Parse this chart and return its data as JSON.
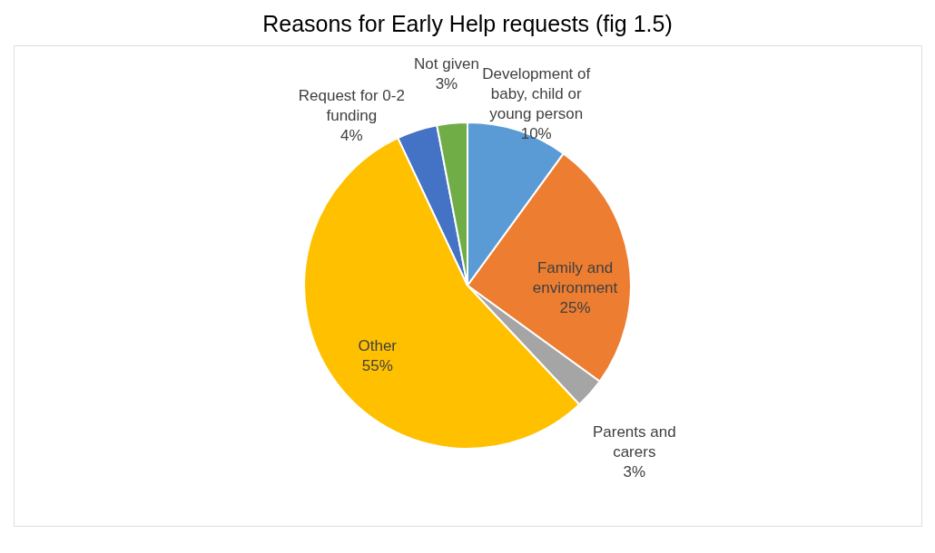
{
  "chart_data": {
    "type": "pie",
    "title": "Reasons for Early Help requests (fig 1.5)",
    "categories": [
      "Development of baby, child or young person",
      "Family and environment",
      "Parents and carers",
      "Other",
      "Request for 0-2 funding",
      "Not given"
    ],
    "values": [
      10,
      25,
      3,
      55,
      4,
      3
    ],
    "colors": [
      "#5b9bd5",
      "#ed7d31",
      "#a5a5a5",
      "#ffc000",
      "#4472c4",
      "#70ad47"
    ],
    "value_labels": [
      "10%",
      "25%",
      "3%",
      "55%",
      "4%",
      "3%"
    ],
    "legend": false
  }
}
